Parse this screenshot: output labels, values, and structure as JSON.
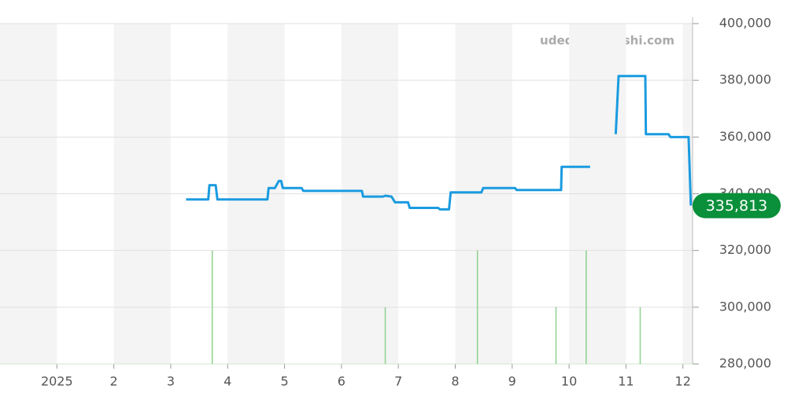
{
  "chart_data": {
    "type": "line",
    "watermark": "udedokeitoushi.com",
    "xlim": [
      0,
      12.17
    ],
    "xticks": [
      {
        "value": 1,
        "label": "2025"
      },
      2,
      3,
      4,
      5,
      6,
      7,
      8,
      9,
      10,
      11,
      12
    ],
    "ylim": [
      280000,
      400000
    ],
    "yticks": [
      {
        "value": 280000,
        "label": "280,000"
      },
      {
        "value": 300000,
        "label": "300,000"
      },
      {
        "value": 320000,
        "label": "320,000"
      },
      {
        "value": 340000,
        "label": "340,000"
      },
      {
        "value": 360000,
        "label": "360,000"
      },
      {
        "value": 380000,
        "label": "380,000"
      },
      {
        "value": 400000,
        "label": "400,000"
      }
    ],
    "grid": true,
    "band_color": "#f4f4f4",
    "series": [
      {
        "kind": "line",
        "color": "#1a9be0",
        "x": [
          3.27,
          3.66,
          3.68,
          3.79,
          3.82,
          4.7,
          4.72,
          4.83,
          4.9,
          4.94,
          4.97,
          5.3,
          5.33,
          6.36,
          6.38,
          6.73,
          6.77,
          6.88,
          6.94,
          7.17,
          7.2,
          7.7,
          7.73,
          7.89,
          7.92,
          8.46,
          8.49,
          9.05,
          9.08,
          9.86,
          9.87,
          10.37,
          10.6,
          10.82,
          10.87,
          11.34,
          11.35,
          11.75,
          11.78,
          12.1,
          12.14
        ],
        "values": [
          338000,
          338000,
          343000,
          343000,
          338000,
          338000,
          342000,
          342000,
          344500,
          344500,
          342000,
          342000,
          341000,
          341000,
          339000,
          339000,
          339300,
          339000,
          337000,
          337000,
          335000,
          335000,
          334500,
          334500,
          340500,
          340500,
          342000,
          342000,
          341300,
          341300,
          349500,
          349500,
          null,
          361000,
          381500,
          381500,
          361000,
          361000,
          360000,
          360000,
          335813
        ]
      },
      {
        "kind": "bar",
        "color": "#8fd18f",
        "x": [
          3.73,
          6.77,
          8.39,
          9.77,
          10.3,
          11.25
        ],
        "values": [
          320000,
          300000,
          320000,
          300000,
          320000,
          300000
        ]
      }
    ],
    "latest": {
      "value": 335813,
      "label": "335,813",
      "color": "#0a8f3a"
    }
  }
}
